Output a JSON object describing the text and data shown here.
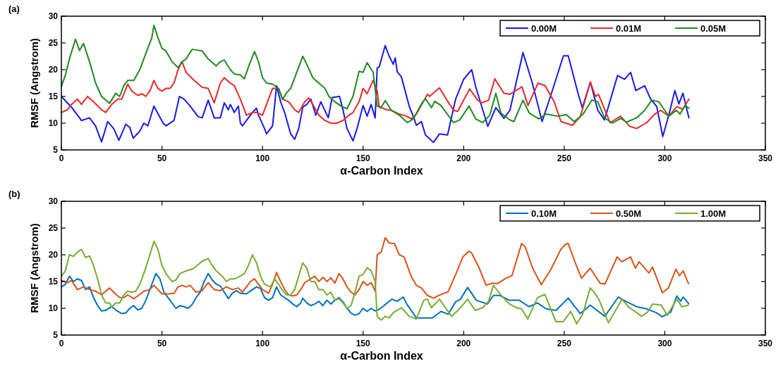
{
  "chart_data": [
    {
      "type": "line",
      "title": "(a)",
      "xlabel": "α-Carbon Index",
      "ylabel": "RMSF (Angstrom)",
      "xlim": [
        0,
        350
      ],
      "xticks": [
        0,
        50,
        100,
        150,
        200,
        250,
        300,
        350
      ],
      "ylim": [
        5,
        30
      ],
      "yticks": [
        5,
        10,
        15,
        20,
        25,
        30
      ],
      "grid": false,
      "legend": "top right",
      "marker": "none",
      "line_style": "solid",
      "series": [
        {
          "name": "0.00M",
          "color": "#1a1ae6",
          "x": [
            0,
            5,
            10,
            14,
            17,
            20,
            23,
            26,
            28.6,
            32,
            34,
            35.7,
            39,
            41,
            43,
            46,
            50.6,
            52,
            56,
            58.7,
            61,
            64,
            68,
            70,
            73,
            76,
            79,
            81,
            83,
            84,
            86,
            88,
            89,
            90,
            93,
            95,
            97,
            98,
            101,
            102,
            105,
            107,
            109,
            111,
            114,
            116,
            118,
            120,
            122,
            124,
            126.5,
            129,
            132.7,
            134.6,
            138.3,
            140,
            142,
            145,
            147,
            150,
            152,
            154,
            156,
            157,
            158,
            161,
            163,
            165,
            166,
            167,
            169,
            173,
            175,
            176.5,
            179,
            181,
            185,
            188,
            192,
            196,
            200,
            204,
            206,
            212,
            216,
            220,
            223,
            229.5,
            234,
            239,
            243.5,
            249.6,
            252,
            257,
            259,
            263,
            266.7,
            270,
            276.5,
            280,
            283,
            285.6,
            290,
            293,
            296,
            299,
            302,
            305,
            307,
            309,
            312
          ],
          "values": [
            15,
            13,
            10.5,
            11,
            9.5,
            6.5,
            10.3,
            9,
            6.8,
            9.8,
            9.2,
            7.2,
            8.5,
            10,
            9.5,
            13.2,
            10,
            9.5,
            10.5,
            15,
            14.5,
            13.2,
            11.2,
            11,
            14.3,
            11,
            11,
            13.8,
            12.5,
            13.5,
            12,
            13.2,
            10,
            9.5,
            11,
            12,
            12.8,
            11.5,
            9,
            8,
            9.5,
            17,
            14,
            12,
            8,
            7,
            9,
            13,
            13.5,
            14.5,
            11.5,
            14,
            11,
            14.8,
            15,
            12.5,
            9,
            6.7,
            9,
            13.3,
            11.3,
            13.5,
            11,
            20.3,
            20.5,
            24.5,
            22.5,
            21,
            22.2,
            19.6,
            18.7,
            13.1,
            11.2,
            9.6,
            10.3,
            7.8,
            6.4,
            8,
            7.8,
            14.5,
            18.2,
            20,
            16.8,
            9.4,
            12.9,
            10.9,
            12.4,
            23.2,
            17.7,
            10.3,
            15.4,
            22.6,
            22.6,
            15.4,
            12.9,
            17.7,
            12.4,
            10.6,
            18.9,
            18.2,
            19.5,
            16.1,
            17,
            14.5,
            13.1,
            7.5,
            11.5,
            16.1,
            13.6,
            15.6,
            11
          ]
        },
        {
          "name": "0.01M",
          "color": "#e8292b",
          "x": [
            0,
            3,
            5,
            8,
            10,
            13,
            16,
            20,
            22,
            25,
            28,
            30,
            33,
            35,
            38,
            40,
            42,
            44,
            46,
            48,
            50,
            52,
            54,
            56,
            58,
            60,
            62,
            66,
            70,
            73,
            76,
            79,
            81,
            84,
            86,
            89,
            92,
            95,
            97,
            100,
            102,
            105,
            108,
            110,
            113,
            116,
            118,
            121,
            123,
            125,
            128,
            131,
            134,
            137,
            140,
            143,
            145,
            148,
            150,
            152,
            155,
            157,
            158,
            162,
            164,
            168,
            171.6,
            174,
            176.5,
            182,
            183,
            188,
            191,
            195,
            197,
            203,
            207,
            209,
            212.4,
            215.5,
            220,
            223,
            229,
            232,
            237,
            240.5,
            245,
            248.4,
            254,
            258,
            263,
            265.5,
            267,
            272.8,
            278,
            282.6,
            286,
            291,
            295,
            298,
            302,
            306,
            309,
            312
          ],
          "values": [
            12,
            12.5,
            13.5,
            14.5,
            13.5,
            15,
            14,
            12.5,
            12,
            13.5,
            14.5,
            14.5,
            17.3,
            16,
            15.2,
            15.5,
            15,
            16,
            18,
            16.5,
            16,
            16.5,
            16.5,
            17.5,
            20,
            21.5,
            19.5,
            18,
            16.7,
            16.5,
            13.8,
            17.5,
            18.5,
            17.5,
            17,
            14.5,
            11.5,
            12,
            12,
            11.5,
            13.5,
            16.5,
            16.5,
            14.5,
            14,
            12.5,
            12,
            14,
            14.7,
            13.5,
            11.5,
            10.5,
            10,
            10,
            10.5,
            11.5,
            12,
            14,
            16.5,
            15.5,
            18,
            16,
            13,
            12.5,
            12.4,
            11.7,
            11.3,
            10.8,
            11.7,
            15.4,
            15,
            16.6,
            14.7,
            12.4,
            12.2,
            16.4,
            14.3,
            13.8,
            14.3,
            18.3,
            15.6,
            15.4,
            16.8,
            13.3,
            17.5,
            17,
            14,
            10.3,
            9.6,
            11.2,
            17.7,
            15,
            15.4,
            10.1,
            11.3,
            9.4,
            9,
            10.1,
            11.7,
            12.4,
            11.3,
            13.1,
            12.6,
            14.5
          ]
        },
        {
          "name": "0.05M",
          "color": "#1e8a1e",
          "x": [
            0,
            2,
            4,
            7,
            9,
            11,
            14,
            17,
            20,
            24,
            27,
            29,
            31,
            33,
            36,
            39,
            42,
            45,
            46,
            48,
            50,
            52,
            55,
            58,
            60,
            62,
            65,
            67,
            70,
            73,
            77,
            79,
            81,
            84,
            86,
            89,
            91,
            93,
            96,
            98,
            100,
            102,
            105,
            108,
            110,
            112,
            114,
            117,
            120,
            122,
            125,
            128,
            131,
            133,
            136,
            139,
            142,
            145,
            148,
            150,
            152,
            155,
            157,
            159,
            161,
            164,
            168,
            172,
            175,
            179,
            181,
            184,
            185.6,
            188.7,
            195,
            198,
            202.7,
            206,
            209.4,
            213,
            216,
            218.5,
            223,
            225,
            229.5,
            232.6,
            237.4,
            241,
            247,
            251,
            255,
            259.4,
            263.7,
            266.7,
            270,
            274,
            278,
            281,
            286,
            290,
            293.5,
            297,
            299.6,
            302,
            305.7,
            307.6,
            310,
            312
          ],
          "values": [
            16.9,
            19,
            22,
            25.7,
            23.6,
            24.9,
            21.5,
            17.5,
            15,
            13.7,
            15.6,
            15,
            17,
            18,
            18,
            20,
            23,
            26,
            28.3,
            26,
            24,
            23.5,
            21.5,
            20.4,
            21.5,
            22,
            23.8,
            23.7,
            23.5,
            22,
            20.7,
            21.5,
            21.8,
            20,
            19.2,
            19,
            18.3,
            20.5,
            23.4,
            21.5,
            18.5,
            17.5,
            17.3,
            16.5,
            14.4,
            15.7,
            16.5,
            19.5,
            22.5,
            21,
            18.5,
            17.5,
            16.5,
            15,
            14,
            13.2,
            12.7,
            15,
            19.7,
            19.5,
            21.3,
            19.5,
            13.2,
            13,
            14.2,
            12.4,
            11.5,
            10.1,
            10.8,
            13.6,
            14.6,
            12.9,
            14.1,
            13.3,
            10.1,
            10.6,
            13.2,
            10.8,
            10.1,
            11.5,
            15.6,
            11.9,
            10.6,
            10.3,
            14.3,
            11.9,
            10.8,
            11.7,
            11.3,
            11.6,
            10.3,
            11.7,
            14.3,
            14,
            11,
            10,
            10.9,
            10.2,
            11,
            12.4,
            14.3,
            14,
            12.6,
            11.3,
            12.4,
            11.7,
            13.3,
            12.8
          ]
        }
      ]
    },
    {
      "type": "line",
      "title": "(b)",
      "xlabel": "α-Carbon Index",
      "ylabel": "RMSF (Angstrom)",
      "xlim": [
        0,
        350
      ],
      "xticks": [
        0,
        50,
        100,
        150,
        200,
        250,
        300,
        350
      ],
      "ylim": [
        5,
        30
      ],
      "yticks": [
        5,
        10,
        15,
        20,
        25,
        30
      ],
      "grid": false,
      "legend": "top right",
      "marker": "none",
      "line_style": "solid",
      "series": [
        {
          "name": "0.10M",
          "color": "#0072bd",
          "x": [
            0,
            2,
            4,
            6,
            8,
            10,
            12,
            14,
            16,
            18,
            20,
            22,
            25,
            27,
            30,
            32,
            34,
            36,
            38,
            40,
            42,
            45,
            47,
            49,
            51,
            54,
            57,
            59,
            61,
            63,
            65,
            67,
            69,
            71,
            73,
            75,
            77,
            79,
            81,
            83,
            85,
            87,
            89,
            92,
            95,
            97,
            99,
            101,
            103,
            105,
            107,
            109,
            111,
            113,
            115,
            117,
            119,
            120,
            122,
            124,
            126,
            128,
            130,
            132,
            134,
            136,
            138,
            140,
            142,
            144,
            146,
            148,
            150,
            152,
            154,
            156,
            158,
            160,
            162,
            164.4,
            166.8,
            170,
            171.7,
            176.5,
            181.4,
            184.4,
            188.7,
            192.3,
            196,
            198.4,
            202,
            206.3,
            211.8,
            214.8,
            217.9,
            222.7,
            227.6,
            232.5,
            236.7,
            241,
            245.9,
            252,
            258,
            262.9,
            265.3,
            270.2,
            276.9,
            281.1,
            286,
            290.9,
            295.7,
            298.8,
            303,
            306,
            307.9,
            309.1,
            311.8
          ],
          "values": [
            14,
            14.5,
            16,
            15,
            15.5,
            15.2,
            13.5,
            14,
            12,
            10.5,
            9.5,
            9.6,
            10.3,
            9.7,
            9,
            9.1,
            10,
            10.5,
            9.7,
            10,
            11.5,
            14.5,
            16.5,
            15.5,
            13,
            11.5,
            10,
            10.5,
            10.3,
            10,
            10.7,
            12,
            13,
            15,
            16.5,
            15.3,
            14.5,
            14.2,
            13,
            11.8,
            12.8,
            13.3,
            12.8,
            12.7,
            13.5,
            14,
            13.7,
            12,
            11.5,
            12,
            14,
            12.5,
            12,
            11.5,
            10.8,
            10.3,
            11,
            11.9,
            11,
            10.5,
            10.8,
            11.3,
            10.5,
            11.5,
            10.8,
            11.5,
            12,
            11.2,
            10,
            9.1,
            8.7,
            9,
            10,
            9.4,
            10,
            9.5,
            9.8,
            10.4,
            11,
            11.7,
            11.3,
            12.1,
            10.8,
            8.2,
            8.2,
            8.2,
            9.4,
            8.9,
            11.2,
            11.7,
            13.9,
            11.5,
            10.8,
            12.4,
            12.4,
            11.5,
            11.5,
            10.3,
            11,
            9.9,
            9.6,
            11.9,
            9,
            10.6,
            9.9,
            8.5,
            12.1,
            11.2,
            10.3,
            9.9,
            9.2,
            8.4,
            9.3,
            12.3,
            11.3,
            12.1,
            10.9
          ]
        },
        {
          "name": "0.50M",
          "color": "#d95319",
          "x": [
            0,
            3,
            5,
            8,
            11,
            14,
            17,
            20,
            22,
            24,
            26,
            29,
            31,
            33,
            36,
            38,
            41,
            44,
            46,
            48,
            50,
            53,
            56,
            58,
            60,
            62,
            64,
            67,
            70,
            73,
            76,
            79,
            82,
            85,
            88,
            90,
            92,
            94,
            96,
            98,
            100,
            103,
            105,
            107,
            109,
            111,
            113,
            115,
            117,
            119,
            121,
            124,
            126,
            128,
            130,
            132,
            134,
            136,
            138,
            140,
            142,
            144,
            146,
            148,
            150,
            152,
            154,
            156,
            157,
            159,
            161,
            163,
            165.6,
            168,
            170.4,
            174,
            176.5,
            179,
            182,
            185,
            187.5,
            192.3,
            196,
            199.6,
            202.7,
            204,
            207.5,
            211.2,
            214.2,
            216.7,
            221,
            224,
            228.8,
            230.7,
            234.3,
            238.6,
            243.4,
            248.3,
            250.7,
            252,
            255.6,
            258.6,
            262.9,
            267.8,
            270.2,
            276.3,
            278.7,
            283,
            285.4,
            287.2,
            292.1,
            293.9,
            298.8,
            301.8,
            305.5,
            307.3,
            309.1,
            311.8
          ],
          "values": [
            15.2,
            14.8,
            15.2,
            13.5,
            14,
            13.5,
            13.2,
            12.5,
            13.2,
            13.8,
            13,
            12,
            12,
            12.5,
            11.8,
            12.3,
            13.2,
            13.5,
            14.3,
            13.5,
            12.7,
            12.7,
            12.8,
            14,
            14.3,
            14,
            14.3,
            13,
            13.3,
            14.8,
            13.5,
            13.3,
            14,
            13.5,
            13.8,
            13,
            14,
            15,
            15.5,
            14.5,
            13.5,
            12.8,
            14.5,
            16.7,
            15,
            13.5,
            12.5,
            12.3,
            12.5,
            13.5,
            14.8,
            15.5,
            16,
            15,
            15.8,
            15,
            15.7,
            14.7,
            16.5,
            15.5,
            14,
            13,
            12.5,
            13.5,
            15,
            14.3,
            14.8,
            13.2,
            20,
            20.5,
            23.2,
            22.2,
            22.1,
            20,
            19.6,
            15.9,
            14.3,
            13.8,
            12.4,
            11.9,
            12.4,
            13.1,
            16.3,
            19.6,
            20.7,
            20.3,
            17.7,
            14.3,
            14.7,
            14.6,
            15.6,
            16.1,
            22.1,
            21.4,
            17.5,
            14.4,
            17.3,
            21,
            22,
            22.1,
            18.4,
            15.6,
            17.5,
            14.7,
            14.5,
            19.6,
            18.7,
            19.6,
            17.5,
            18.7,
            16.6,
            17.7,
            12.9,
            13.8,
            17.3,
            16.1,
            17,
            14.6
          ]
        },
        {
          "name": "1.00M",
          "color": "#77ac30",
          "x": [
            0,
            2,
            4,
            6,
            8,
            10,
            12,
            14,
            16,
            18,
            20,
            22,
            24,
            25,
            27,
            29,
            31,
            33,
            35,
            37,
            39,
            41,
            44,
            46,
            48,
            50,
            52,
            55,
            57,
            59,
            62,
            64,
            66,
            69,
            71,
            73,
            75,
            77,
            80,
            82,
            84,
            86,
            89,
            91,
            93,
            95,
            97,
            99,
            101,
            104,
            106,
            108,
            110,
            112,
            114,
            116,
            118,
            120,
            122,
            124,
            126,
            128,
            130,
            132,
            134,
            136,
            138,
            140,
            142,
            144,
            146,
            148,
            150,
            152,
            154,
            156,
            157,
            159,
            161,
            163,
            165,
            169.2,
            172.9,
            176.5,
            180.2,
            182,
            184,
            188,
            191,
            194,
            197.2,
            202,
            205.7,
            209.4,
            212.4,
            214.8,
            218.5,
            222.7,
            226.4,
            228.8,
            231.9,
            236.7,
            240.4,
            242.8,
            245.9,
            249.5,
            253.2,
            256.2,
            259.2,
            262.9,
            264.7,
            267.2,
            272,
            276.3,
            278.7,
            282.4,
            286,
            288.4,
            291.5,
            293.9,
            298.2,
            301.2,
            306,
            308.5,
            311.8
          ],
          "values": [
            16,
            17,
            20,
            19.7,
            20.5,
            21,
            19.5,
            19.8,
            18,
            15.5,
            12.5,
            11,
            11,
            10.2,
            11,
            11,
            12.5,
            13.2,
            13,
            13.2,
            14.5,
            16.5,
            20,
            22.5,
            21,
            18,
            16.5,
            15,
            15.3,
            16.5,
            17,
            17.2,
            17.5,
            18.5,
            19,
            19.3,
            18,
            17,
            16,
            15,
            15.5,
            15.5,
            16,
            16.5,
            18,
            20,
            18.5,
            16,
            14.5,
            14,
            15.5,
            14.5,
            13.3,
            12.5,
            12.5,
            13.5,
            16,
            18.5,
            17.5,
            15,
            15,
            13.5,
            13.5,
            12.5,
            13,
            11.5,
            11.8,
            11,
            10,
            10.5,
            13,
            16,
            16.3,
            17.6,
            17,
            15,
            8.5,
            7.8,
            8.5,
            8.2,
            9.2,
            10.1,
            8.5,
            8,
            11.5,
            11.7,
            10.1,
            11.7,
            10.1,
            8.5,
            9.6,
            11.7,
            9.6,
            10.1,
            11.3,
            14.3,
            12.5,
            10.8,
            10.1,
            9.9,
            8,
            12,
            12.6,
            10.3,
            7.5,
            7.5,
            9.4,
            7.1,
            8.9,
            13.8,
            13.1,
            11.7,
            7.3,
            10.1,
            11.7,
            10.1,
            9.2,
            8.5,
            9.3,
            10.8,
            10.6,
            8.7,
            11.7,
            10.3,
            10.6
          ]
        }
      ]
    }
  ]
}
